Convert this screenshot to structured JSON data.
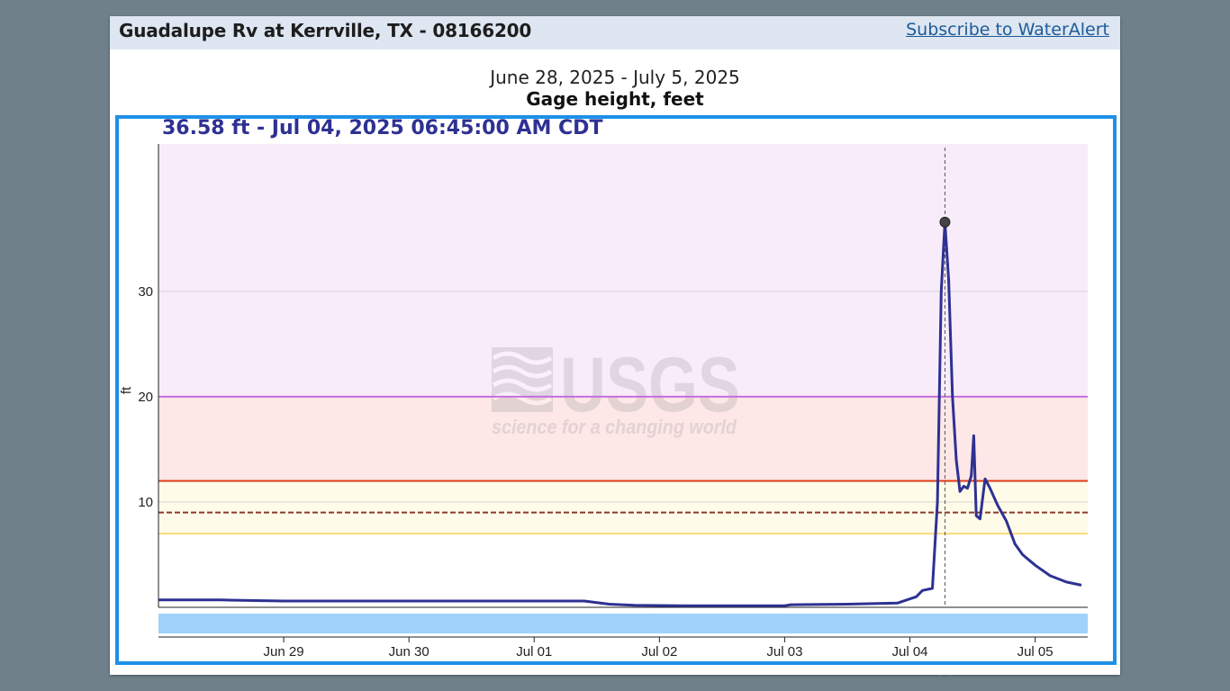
{
  "header": {
    "site_title": "Guadalupe Rv at Kerrville, TX - 08166200",
    "subscribe_label": "Subscribe to WaterAlert"
  },
  "chart_header": {
    "date_range": "June 28, 2025 - July 5, 2025",
    "parameter": "Gage height, feet",
    "readout": "36.58 ft - Jul 04, 2025 06:45:00 AM CDT"
  },
  "watermark": {
    "logo_text": "USGS",
    "tagline": "science for a changing world"
  },
  "colors": {
    "line": "#2e3192",
    "frame": "#1e90e8",
    "band_purple": "#f8ecfa",
    "band_red": "#fde7e7",
    "band_yellow": "#fffbe9",
    "line_purple": "#c66ee0",
    "line_red": "#de3b1a",
    "line_dashed": "#8b3a2a",
    "line_yellow": "#f7dc7a",
    "brush": "#9fd3fa"
  },
  "chart_data": {
    "type": "line",
    "title": "Gage height, feet",
    "ylabel": "ft",
    "ylim": [
      0,
      44
    ],
    "yticks": [
      10,
      20,
      30
    ],
    "x_ticks": [
      "Jun 29",
      "Jun 30",
      "Jul 01",
      "Jul 02",
      "Jul 03",
      "Jul 04",
      "Jul 05"
    ],
    "x_unit": "days since Jun 28 00:00",
    "xlim": [
      0,
      7.42
    ],
    "thresholds": [
      {
        "value": 20,
        "style": "purple"
      },
      {
        "value": 12,
        "style": "red"
      },
      {
        "value": 9,
        "style": "dashed"
      },
      {
        "value": 7,
        "style": "yellow"
      }
    ],
    "bands": [
      {
        "from": 20,
        "to": 44,
        "style": "purple"
      },
      {
        "from": 12,
        "to": 20,
        "style": "red"
      },
      {
        "from": 7,
        "to": 12,
        "style": "yellow"
      }
    ],
    "highlight": {
      "x": 6.28,
      "y": 36.58
    },
    "series": [
      {
        "name": "Gage height",
        "points": [
          [
            0,
            0.7
          ],
          [
            0.5,
            0.7
          ],
          [
            1.0,
            0.6
          ],
          [
            1.5,
            0.6
          ],
          [
            2.0,
            0.6
          ],
          [
            2.5,
            0.6
          ],
          [
            3.0,
            0.6
          ],
          [
            3.4,
            0.6
          ],
          [
            3.6,
            0.3
          ],
          [
            3.8,
            0.2
          ],
          [
            4.2,
            0.15
          ],
          [
            5.0,
            0.15
          ],
          [
            5.05,
            0.25
          ],
          [
            5.5,
            0.3
          ],
          [
            5.9,
            0.4
          ],
          [
            6.05,
            1.0
          ],
          [
            6.1,
            1.6
          ],
          [
            6.18,
            1.8
          ],
          [
            6.22,
            10.0
          ],
          [
            6.25,
            30.0
          ],
          [
            6.28,
            36.58
          ],
          [
            6.31,
            31.0
          ],
          [
            6.34,
            20.0
          ],
          [
            6.37,
            14.0
          ],
          [
            6.4,
            11.0
          ],
          [
            6.43,
            11.5
          ],
          [
            6.46,
            11.3
          ],
          [
            6.49,
            12.5
          ],
          [
            6.51,
            16.3
          ],
          [
            6.53,
            8.7
          ],
          [
            6.56,
            8.4
          ],
          [
            6.6,
            12.2
          ],
          [
            6.64,
            11.3
          ],
          [
            6.7,
            9.7
          ],
          [
            6.77,
            8.2
          ],
          [
            6.84,
            6.0
          ],
          [
            6.9,
            5.0
          ],
          [
            7.0,
            4.0
          ],
          [
            7.12,
            3.0
          ],
          [
            7.25,
            2.4
          ],
          [
            7.37,
            2.1
          ]
        ]
      }
    ]
  }
}
